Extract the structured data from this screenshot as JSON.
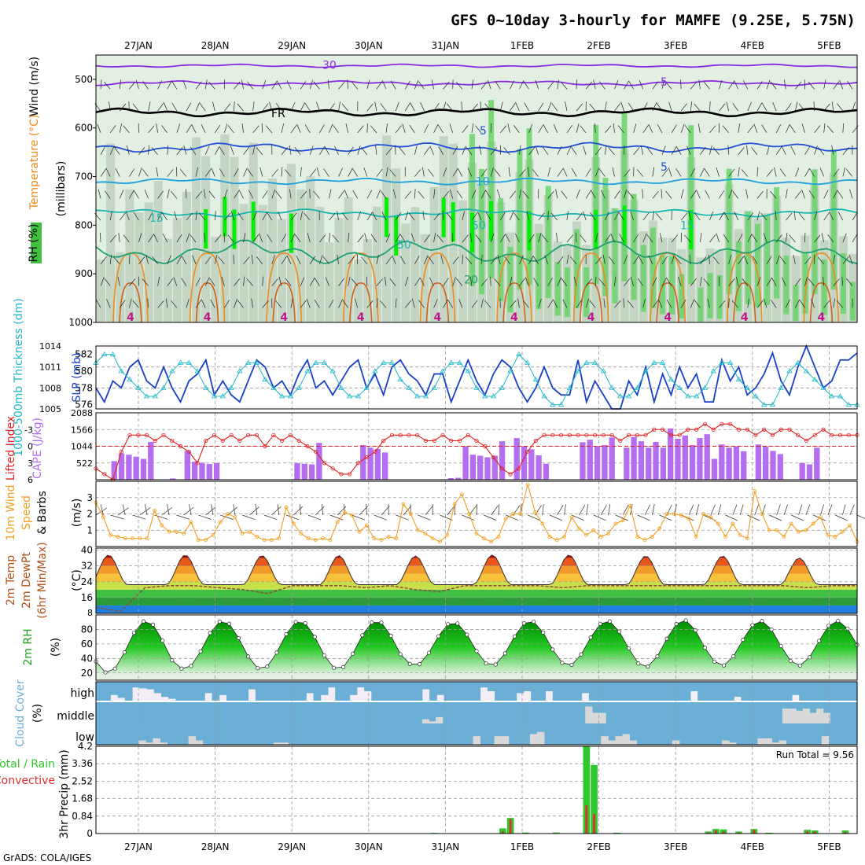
{
  "title": "GFS 0~10day 3-hourly for MAMFE (9.25E, 5.75N)",
  "footer": "GrADS: COLA/IGES",
  "dates": [
    "27JAN",
    "28JAN",
    "29JAN",
    "30JAN",
    "31JAN",
    "1FEB",
    "2FEB",
    "3FEB",
    "4FEB",
    "5FEB"
  ],
  "colors": {
    "rh_light": "#e3efe3",
    "rh_mid": "#b9ccb9",
    "rh_green": "#6bd26b",
    "rh_bright": "#00f000",
    "wind": "#8a2be2",
    "freezing": "#000000",
    "temp_blue": "#1f4fd6",
    "temp_cyan": "#1ea0dc",
    "temp_teal": "#18b6b0",
    "temp_green": "#1fa070",
    "temp_orange": "#f08a1c",
    "slp": "#1a3fc8",
    "thickness": "#22b8c8",
    "li": "#e02020",
    "cape": "#b56ef0",
    "speed": "#f0a020",
    "dewpt": "#8a4a3a",
    "cloud": "#6baed6",
    "precip_total": "#2ec82e",
    "precip_conv": "#e03030"
  },
  "chart_data": [
    {
      "panel": "upper-air",
      "type": "heatmap",
      "ylabel_parts": [
        "RH (%)",
        "Temperature (°C)",
        "Wind (m/s)"
      ],
      "yunits": "(millibars)",
      "ylim": [
        1000,
        450
      ],
      "yticks": [
        500,
        600,
        700,
        800,
        900,
        1000
      ],
      "isotherm_labels": [
        {
          "label": "5",
          "level": 505
        },
        {
          "label": "FR",
          "level": 570
        },
        {
          "label": "5",
          "level": 605
        },
        {
          "label": "5",
          "level": 680
        },
        {
          "label": "10",
          "level": 710
        },
        {
          "label": "15",
          "level": 785
        },
        {
          "label": "15",
          "level": 800
        },
        {
          "label": "20",
          "level": 912
        },
        {
          "label": "30",
          "level": 470
        },
        {
          "label": "50",
          "level": 800
        },
        {
          "label": "50",
          "level": 840
        }
      ],
      "contours": [
        {
          "name": "-5",
          "color_key": "wind",
          "level": 472,
          "amp": 4
        },
        {
          "name": "-5b",
          "color_key": "wind",
          "level": 508,
          "amp": 6
        },
        {
          "name": "FR",
          "color_key": "freezing",
          "level": 568,
          "amp": 10
        },
        {
          "name": "5",
          "color_key": "temp_blue",
          "level": 640,
          "amp": 12
        },
        {
          "name": "10",
          "color_key": "temp_cyan",
          "level": 710,
          "amp": 8
        },
        {
          "name": "15",
          "color_key": "temp_teal",
          "level": 775,
          "amp": 10
        },
        {
          "name": "20",
          "color_key": "temp_green",
          "level": 855,
          "amp": 30
        }
      ]
    },
    {
      "panel": "slp-thickness",
      "type": "line",
      "ylabel_left": "1000-500mb Thickness (dm)",
      "ylabel_right": "SLP (mb)",
      "yticks_left": [
        576,
        578,
        580,
        582
      ],
      "yticks_right": [
        1005,
        1008,
        1011,
        1014
      ],
      "ylim_left": [
        575.5,
        583
      ],
      "ylim_right": [
        1005,
        1014
      ],
      "series": [
        {
          "color_key": "slp",
          "values": [
            1008,
            1006,
            1009,
            1008,
            1011,
            1012,
            1009,
            1008,
            1011,
            1008,
            1006,
            1009,
            1010,
            1012,
            1007,
            1009,
            1007,
            1006,
            1009,
            1012,
            1011,
            1008,
            1009,
            1007,
            1010,
            1012,
            1008,
            1009,
            1007,
            1009,
            1011,
            1012,
            1008,
            1010,
            1007,
            1011,
            1012,
            1010,
            1009,
            1007,
            1010,
            1010,
            1006,
            1009,
            1012,
            1009,
            1007,
            1010,
            1012,
            1011,
            1008,
            1006,
            1008,
            1011,
            1008,
            1007,
            1007,
            1012,
            1006,
            1009,
            1007,
            1005,
            1005,
            1009,
            1007,
            1011,
            1006,
            1010,
            1007,
            1011,
            1008,
            1010,
            1006,
            1006,
            1012,
            1009,
            1011,
            1007,
            1008,
            1010,
            1013,
            1009,
            1007,
            1011,
            1014,
            1011,
            1008,
            1009,
            1012,
            1012,
            1013
          ]
        },
        {
          "color_key": "thickness",
          "values": [
            581,
            582,
            582,
            580,
            579,
            578,
            577,
            577,
            578,
            580,
            581,
            581,
            580,
            578,
            577,
            577,
            578,
            580,
            581,
            581,
            579,
            578,
            577,
            577,
            578,
            580,
            581,
            581,
            580,
            578,
            577,
            577,
            578,
            580,
            581,
            581,
            579,
            578,
            577,
            577,
            578,
            580,
            581,
            581,
            580,
            578,
            577,
            577,
            578,
            580,
            582,
            581,
            579,
            577,
            576,
            576,
            578,
            580,
            581,
            581,
            580,
            578,
            577,
            577,
            578,
            580,
            581,
            581,
            579,
            578,
            577,
            577,
            578,
            580,
            581,
            581,
            579,
            578,
            577,
            576,
            576,
            578,
            580,
            581,
            580,
            579,
            578,
            577,
            577,
            576,
            576
          ]
        }
      ]
    },
    {
      "panel": "lifted-index-cape",
      "type": "bar",
      "ylabel_left": "Lifted Index",
      "ylabel_right": "CAPE (J/kg)",
      "yticks_left": [
        -3,
        0,
        3,
        6
      ],
      "yticks_right": [
        522,
        1044,
        1566,
        2088
      ],
      "li_ylim": [
        6,
        -6
      ],
      "cape_ylim": [
        0,
        2088
      ],
      "li_values": [
        4,
        5,
        6,
        1,
        -2,
        -2,
        -2,
        -1,
        -2,
        -1,
        0,
        1,
        3,
        -1,
        -2,
        -1,
        -2,
        -1,
        -2,
        -2,
        0,
        -2,
        -1,
        -2,
        -1,
        0,
        1,
        3,
        4,
        5,
        5,
        3,
        2,
        1,
        -1,
        -2,
        -2,
        -2,
        -2,
        -1,
        -1,
        -2,
        -1,
        -1,
        -2,
        -1,
        0,
        2,
        4,
        5,
        4,
        1,
        -1,
        -2,
        -2,
        -2,
        -2,
        -2,
        -2,
        -2,
        -2,
        -2,
        -1,
        -2,
        -2,
        -2,
        -3,
        -3,
        -2,
        -2,
        -3,
        -3,
        -4,
        -3,
        -4,
        -4,
        -3,
        -3,
        -2,
        -3,
        -2,
        -3,
        -3,
        -2,
        -1,
        -2,
        -3,
        -2,
        -2,
        -2,
        -2
      ],
      "cape_values": [
        0,
        0,
        580,
        820,
        780,
        720,
        650,
        1180,
        0,
        0,
        40,
        0,
        900,
        560,
        530,
        490,
        520,
        0,
        0,
        0,
        0,
        0,
        0,
        0,
        0,
        0,
        0,
        520,
        500,
        480,
        1150,
        0,
        0,
        0,
        0,
        0,
        1080,
        1000,
        960,
        850,
        0,
        0,
        0,
        0,
        0,
        0,
        0,
        0,
        50,
        60,
        1030,
        780,
        750,
        700,
        750,
        1200,
        0,
        1300,
        1040,
        950,
        760,
        500,
        0,
        0,
        0,
        0,
        1170,
        1250,
        1050,
        1080,
        1320,
        0,
        1000,
        1340,
        1200,
        1000,
        1180,
        1000,
        1600,
        1280,
        1380,
        1080,
        1300,
        1420,
        650,
        1100,
        1000,
        1030,
        890,
        0,
        1100,
        1030,
        900,
        800,
        0,
        0,
        520,
        480,
        1000,
        0,
        0,
        0,
        0,
        0
      ],
      "li_ref": 0
    },
    {
      "panel": "wind-10m",
      "type": "line",
      "ylabel_parts": [
        "10m Wind",
        "Speed",
        "& Barbs"
      ],
      "yunits": "(m/s)",
      "yticks": [
        1,
        2,
        3
      ],
      "ylim": [
        0,
        4
      ],
      "series": [
        {
          "color_key": "speed",
          "values": [
            2.7,
            1.8,
            0.7,
            0.6,
            0.5,
            0.5,
            0.5,
            0.5,
            2.2,
            1.3,
            0.9,
            0.9,
            0.8,
            1.5,
            0.4,
            0.4,
            0.7,
            1.5,
            2.0,
            1.8,
            0.8,
            0.9,
            0.6,
            0.4,
            0.4,
            0.5,
            2.4,
            1.4,
            0.8,
            0.5,
            0.4,
            0.5,
            0.4,
            1.5,
            2.1,
            1.9,
            0.9,
            1.3,
            0.5,
            0.4,
            0.6,
            0.5,
            2.6,
            2.0,
            1.0,
            0.8,
            0.5,
            0.3,
            0.7,
            2.6,
            3.2,
            2.0,
            0.8,
            0.5,
            0.3,
            0.6,
            1.7,
            2.0,
            2.0,
            3.8,
            2.1,
            1.4,
            0.6,
            0.4,
            0.6,
            1.8,
            1.1,
            0.7,
            1.0,
            0.6,
            0.8,
            1.4,
            1.6,
            2.5,
            0.6,
            0.4,
            0.6,
            1.1,
            2.0,
            2.0,
            1.9,
            1.7,
            0.6,
            2.0,
            1.8,
            1.4,
            0.6,
            1.4,
            0.7,
            0.5,
            3.4,
            2.0,
            1.0,
            1.0,
            0.6,
            1.4,
            0.9,
            1.0,
            1.4,
            1.8,
            0.7,
            0.6,
            0.9,
            1.3,
            0.3
          ]
        }
      ]
    },
    {
      "panel": "2m-temp",
      "type": "area",
      "ylabel_parts": [
        "2m Temp",
        "2m DewPt",
        "(6hr Min/Max)"
      ],
      "yunits": "(°C)",
      "yticks": [
        16,
        24,
        32,
        40
      ],
      "ylim": [
        8,
        41
      ],
      "temp_peaks_c": [
        37.5,
        37.5,
        37.2,
        37.2,
        37.0,
        37.5,
        37.5,
        37.0,
        37.0,
        36.0
      ],
      "temp_min_c": 22.5,
      "dewpt_c": [
        11,
        9,
        21,
        22,
        22,
        21,
        20,
        18,
        22,
        22,
        22,
        21,
        22,
        20,
        19,
        22,
        22,
        22,
        22,
        21,
        22,
        22,
        22,
        22,
        22,
        22,
        22,
        22,
        22,
        21,
        22,
        22
      ]
    },
    {
      "panel": "2m-rh",
      "type": "area",
      "ylabel": "2m RH",
      "yunits": "(%)",
      "yticks": [
        20,
        40,
        60,
        80
      ],
      "ylim": [
        10,
        100
      ],
      "rh_min": [
        20,
        25,
        25,
        25,
        30,
        30,
        30,
        28,
        30,
        30
      ],
      "rh_max": [
        92,
        92,
        92,
        92,
        90,
        92,
        92,
        93,
        92,
        92
      ]
    },
    {
      "panel": "cloud-cover",
      "type": "bar",
      "ylabel_parts": [
        "Cloud Cover",
        "(%)"
      ],
      "layer_labels": [
        "high",
        "middle",
        "low"
      ],
      "high_pct": [
        100,
        100,
        70,
        85,
        100,
        30,
        35,
        40,
        60,
        80,
        90,
        100,
        100,
        100,
        100,
        60,
        100,
        70,
        100,
        100,
        100,
        40,
        100,
        100,
        100,
        100,
        100,
        100,
        100,
        60,
        100,
        70,
        30,
        100,
        100,
        70,
        30,
        50,
        100,
        100,
        100,
        100,
        100,
        100,
        100,
        40,
        100,
        70,
        100,
        100,
        100,
        100,
        100,
        30,
        50,
        100,
        100,
        100,
        60,
        50,
        100,
        100,
        50,
        100,
        100,
        100,
        100,
        60,
        100,
        100,
        100,
        100,
        100,
        100,
        100,
        100,
        100,
        100,
        100,
        100,
        100,
        100,
        50,
        100,
        100,
        100,
        100,
        100,
        80,
        100,
        100,
        100,
        100,
        100,
        100,
        100,
        70,
        100,
        100,
        100,
        100,
        100,
        100,
        100,
        100
      ],
      "middle_pct": [
        0,
        0,
        0,
        0,
        0,
        0,
        0,
        0,
        0,
        0,
        0,
        0,
        0,
        0,
        0,
        0,
        0,
        0,
        0,
        0,
        0,
        0,
        0,
        0,
        0,
        0,
        0,
        0,
        0,
        0,
        0,
        0,
        0,
        0,
        0,
        0,
        0,
        0,
        0,
        0,
        0,
        0,
        0,
        0,
        0,
        0,
        0,
        0,
        20,
        10,
        30,
        0,
        0,
        0,
        0,
        0,
        0,
        0,
        0,
        0,
        0,
        0,
        0,
        0,
        0,
        0,
        0,
        0,
        0,
        0,
        0,
        0,
        80,
        50,
        50,
        0,
        0,
        0,
        0,
        0,
        0,
        0,
        0,
        0,
        0,
        0,
        0,
        0,
        0,
        0,
        0,
        0,
        0,
        0,
        0,
        0,
        0,
        0,
        0,
        0,
        0,
        70,
        70,
        60,
        70,
        50,
        70,
        50,
        0,
        0,
        0,
        0
      ],
      "low_pct": [
        0,
        0,
        0,
        0,
        0,
        0,
        20,
        10,
        30,
        10,
        0,
        0,
        0,
        40,
        20,
        0,
        0,
        0,
        0,
        0,
        0,
        0,
        0,
        0,
        0,
        10,
        10,
        0,
        0,
        0,
        0,
        0,
        0,
        0,
        0,
        0,
        0,
        0,
        0,
        0,
        0,
        0,
        0,
        0,
        0,
        0,
        0,
        0,
        0,
        0,
        0,
        0,
        0,
        40,
        0,
        0,
        40,
        40,
        0,
        0,
        0,
        50,
        60,
        0,
        0,
        0,
        0,
        0,
        0,
        0,
        0,
        40,
        20,
        40,
        50,
        20,
        0,
        0,
        0,
        0,
        0,
        20,
        0,
        0,
        0,
        0,
        0,
        0,
        20,
        10,
        0,
        0,
        0,
        30,
        30,
        10,
        20,
        0,
        0,
        0,
        0,
        0,
        40,
        0,
        0,
        0,
        0
      ]
    },
    {
      "panel": "precip",
      "type": "bar",
      "ylabel_left": "3hr Precip (mm)",
      "ylabel_right_parts": [
        "Total / Rain",
        "Convective"
      ],
      "yticks": [
        0,
        0.84,
        1.68,
        2.52,
        3.36,
        4.2
      ],
      "ylim": [
        0,
        4.2
      ],
      "annotation": "Run Total = 9.56",
      "bars": [
        {
          "step": 44,
          "total": 0.03,
          "conv": 0.01
        },
        {
          "step": 53,
          "total": 0.25,
          "conv": 0.1
        },
        {
          "step": 54,
          "total": 0.75,
          "conv": 0.7
        },
        {
          "step": 56,
          "total": 0.05,
          "conv": 0.02
        },
        {
          "step": 60,
          "total": 0.05,
          "conv": 0.02
        },
        {
          "step": 64,
          "total": 4.2,
          "conv": 1.35
        },
        {
          "step": 65,
          "total": 3.3,
          "conv": 0.95
        },
        {
          "step": 68,
          "total": 0.04,
          "conv": 0.02
        },
        {
          "step": 80,
          "total": 0.1,
          "conv": 0.05
        },
        {
          "step": 81,
          "total": 0.22,
          "conv": 0.15
        },
        {
          "step": 82,
          "total": 0.2,
          "conv": 0.1
        },
        {
          "step": 84,
          "total": 0.1,
          "conv": 0.05
        },
        {
          "step": 86,
          "total": 0.22,
          "conv": 0.18
        },
        {
          "step": 88,
          "total": 0.04,
          "conv": 0.02
        },
        {
          "step": 93,
          "total": 0.18,
          "conv": 0.1
        },
        {
          "step": 94,
          "total": 0.15,
          "conv": 0.1
        },
        {
          "step": 98,
          "total": 0.15,
          "conv": 0.08
        }
      ]
    }
  ]
}
